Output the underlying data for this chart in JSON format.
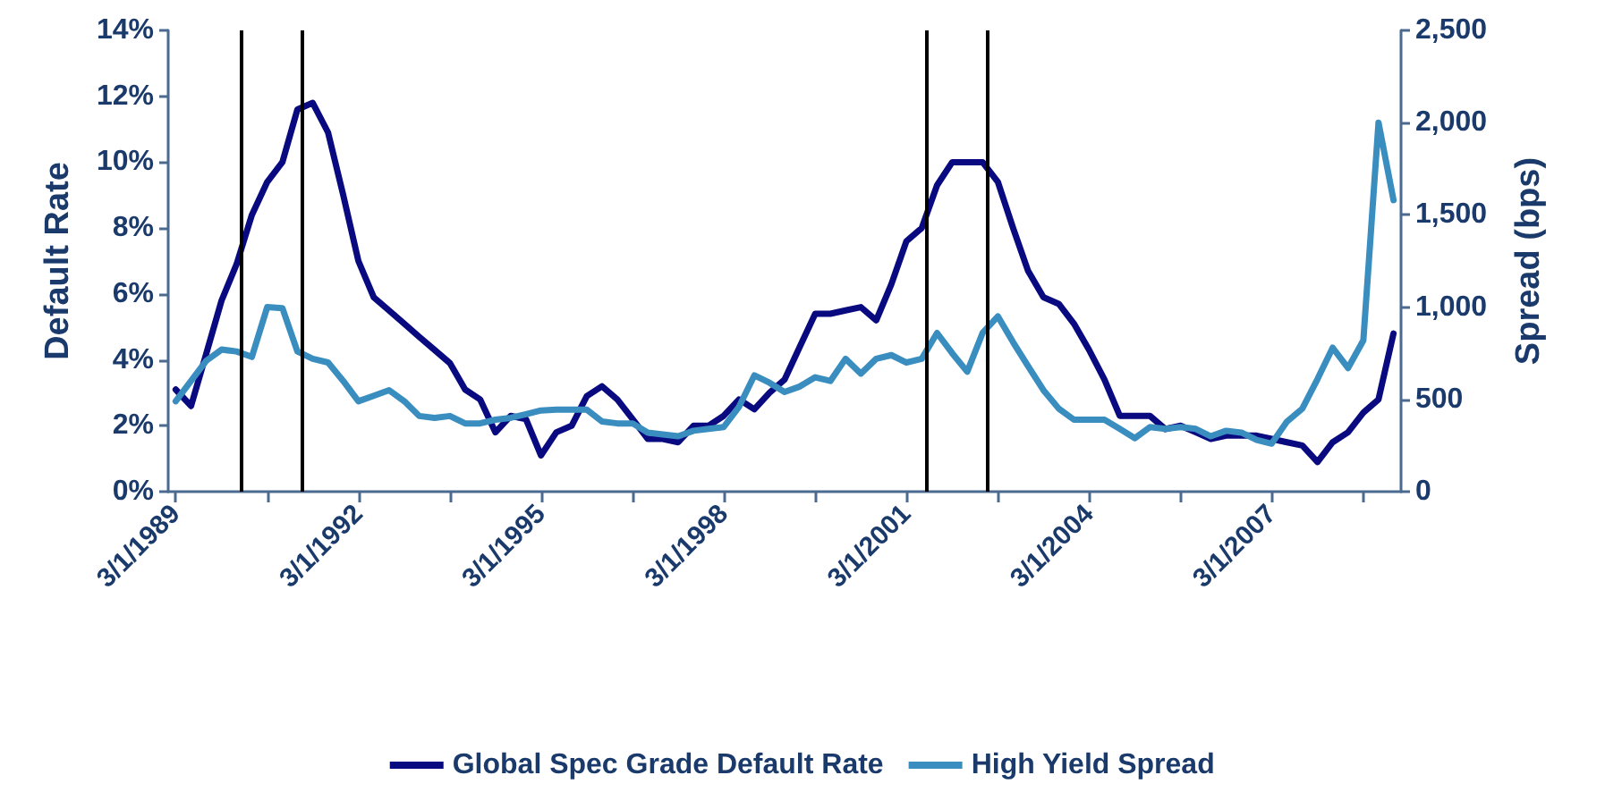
{
  "chart_data": {
    "type": "line",
    "ylabel": "Default Rate",
    "y2label": "Spread (bps)",
    "x": [
      "1989-03",
      "1989-06",
      "1989-09",
      "1989-12",
      "1990-03",
      "1990-06",
      "1990-09",
      "1990-12",
      "1991-03",
      "1991-06",
      "1991-09",
      "1991-12",
      "1992-03",
      "1992-06",
      "1992-09",
      "1992-12",
      "1993-03",
      "1993-06",
      "1993-09",
      "1993-12",
      "1994-03",
      "1994-06",
      "1994-09",
      "1994-12",
      "1995-03",
      "1995-06",
      "1995-09",
      "1995-12",
      "1996-03",
      "1996-06",
      "1996-09",
      "1996-12",
      "1997-03",
      "1997-06",
      "1997-09",
      "1997-12",
      "1998-03",
      "1998-06",
      "1998-09",
      "1998-12",
      "1999-03",
      "1999-06",
      "1999-09",
      "1999-12",
      "2000-03",
      "2000-06",
      "2000-09",
      "2000-12",
      "2001-03",
      "2001-06",
      "2001-09",
      "2001-12",
      "2002-03",
      "2002-06",
      "2002-09",
      "2002-12",
      "2003-03",
      "2003-06",
      "2003-09",
      "2003-12",
      "2004-03",
      "2004-06",
      "2004-09",
      "2004-12",
      "2005-03",
      "2005-06",
      "2005-09",
      "2005-12",
      "2006-03",
      "2006-06",
      "2006-09",
      "2006-12",
      "2007-03",
      "2007-06",
      "2007-09",
      "2007-12",
      "2008-03",
      "2008-06",
      "2008-09",
      "2008-12",
      "2009-03"
    ],
    "series": [
      {
        "name": "Global Spec Grade Default Rate",
        "color": "#0a0a80",
        "values": [
          3.1,
          2.6,
          4.2,
          5.8,
          6.9,
          8.4,
          9.4,
          10.0,
          11.6,
          11.8,
          10.9,
          9.0,
          7.0,
          5.9,
          5.5,
          5.1,
          4.7,
          4.3,
          3.9,
          3.1,
          2.8,
          1.8,
          2.3,
          2.2,
          1.1,
          1.8,
          2.0,
          2.9,
          3.2,
          2.8,
          2.2,
          1.6,
          1.6,
          1.5,
          2.0,
          2.0,
          2.3,
          2.8,
          2.5,
          3.0,
          3.4,
          4.4,
          5.4,
          5.4,
          5.5,
          5.6,
          5.2,
          6.3,
          7.6,
          8.0,
          9.3,
          10.0,
          10.0,
          10.0,
          9.4,
          8.0,
          6.7,
          5.9,
          5.7,
          5.1,
          4.3,
          3.4,
          2.3,
          2.3,
          2.3,
          1.9,
          2.0,
          1.8,
          1.6,
          1.7,
          1.7,
          1.7,
          1.6,
          1.5,
          1.4,
          0.9,
          1.5,
          1.8,
          2.4,
          2.8,
          4.8
        ]
      },
      {
        "name": "High Yield Spread",
        "color": "#3a8dbf",
        "axis": "y2",
        "values": [
          490,
          600,
          710,
          770,
          760,
          730,
          1000,
          995,
          760,
          720,
          700,
          600,
          490,
          520,
          550,
          490,
          410,
          400,
          410,
          370,
          370,
          390,
          400,
          420,
          440,
          445,
          445,
          445,
          380,
          370,
          370,
          320,
          310,
          300,
          330,
          340,
          350,
          460,
          630,
          590,
          540,
          570,
          620,
          600,
          720,
          640,
          720,
          740,
          700,
          720,
          860,
          750,
          650,
          860,
          950,
          810,
          680,
          550,
          450,
          390,
          390,
          390,
          340,
          290,
          350,
          340,
          350,
          340,
          300,
          330,
          320,
          280,
          260,
          380,
          450,
          610,
          780,
          670,
          820,
          2000,
          1580
        ]
      }
    ],
    "xlim": [
      "1989-01-15",
      "2009-04-15"
    ],
    "xticks": [
      {
        "value": "1989-03",
        "label": "3/1/1989"
      },
      {
        "value": "1990-09",
        "label": null
      },
      {
        "value": "1992-03",
        "label": "3/1/1992"
      },
      {
        "value": "1993-09",
        "label": null
      },
      {
        "value": "1995-03",
        "label": "3/1/1995"
      },
      {
        "value": "1996-09",
        "label": null
      },
      {
        "value": "1998-03",
        "label": "3/1/1998"
      },
      {
        "value": "1999-09",
        "label": null
      },
      {
        "value": "2001-03",
        "label": "3/1/2001"
      },
      {
        "value": "2002-09",
        "label": null
      },
      {
        "value": "2004-03",
        "label": "3/1/2004"
      },
      {
        "value": "2005-09",
        "label": null
      },
      {
        "value": "2007-03",
        "label": "3/1/2007"
      },
      {
        "value": "2008-09",
        "label": null
      }
    ],
    "ylim": [
      0,
      14
    ],
    "yticks": [
      {
        "value": 0,
        "label": "0%"
      },
      {
        "value": 2,
        "label": "2%"
      },
      {
        "value": 4,
        "label": "4%"
      },
      {
        "value": 6,
        "label": "6%"
      },
      {
        "value": 8,
        "label": "8%"
      },
      {
        "value": 10,
        "label": "10%"
      },
      {
        "value": 12,
        "label": "12%"
      },
      {
        "value": 14,
        "label": "14%"
      }
    ],
    "y2lim": [
      0,
      2500
    ],
    "y2ticks": [
      0,
      500,
      {
        "value": 1000,
        "label": "1,000"
      },
      {
        "value": 1500,
        "label": "1,500"
      },
      {
        "value": 2000,
        "label": "2,000"
      },
      {
        "value": 2500,
        "label": "2,500"
      }
    ],
    "ref_lines": [
      {
        "axis": "x",
        "value": "1990-04",
        "color": "#000000"
      },
      {
        "axis": "x",
        "value": "1991-04",
        "color": "#000000"
      },
      {
        "axis": "x",
        "value": "2001-07",
        "color": "#000000"
      },
      {
        "axis": "x",
        "value": "2002-07",
        "color": "#000000"
      }
    ],
    "grid": false,
    "legend": "bottom",
    "marker": "none"
  }
}
